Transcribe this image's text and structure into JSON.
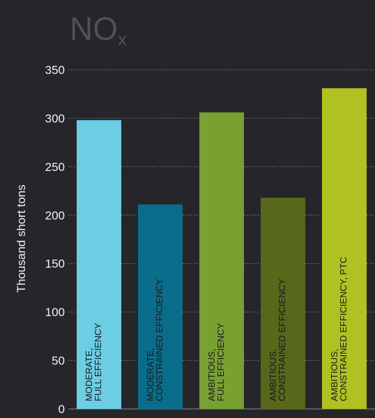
{
  "chart_data": {
    "type": "bar",
    "title": "NO",
    "title_subscript": "x",
    "xlabel": "",
    "ylabel": "Thousand short tons",
    "ylim": [
      0,
      350
    ],
    "yticks": [
      0,
      50,
      100,
      150,
      200,
      250,
      300,
      350
    ],
    "grid": true,
    "categories": [
      [
        "MODERATE,",
        "FULL EFFICIENCY"
      ],
      [
        "MODERATE,",
        "CONSTRAINED EFFICIENCY"
      ],
      [
        "AMBITIOUS,",
        "FULL EFFICIENCY"
      ],
      [
        "AMBITIOUS,",
        "CONSTRAINED EFFICIENCY"
      ],
      [
        "AMBITIOUS,",
        "CONSTRAINED EFFICIENCY, PTC"
      ]
    ],
    "values": [
      298,
      211,
      306,
      218,
      331
    ],
    "colors": [
      "#6ccde3",
      "#0a6d8c",
      "#78a132",
      "#57681b",
      "#b0c222"
    ],
    "background": "#26262a",
    "text_color": "#f2f2f2"
  }
}
